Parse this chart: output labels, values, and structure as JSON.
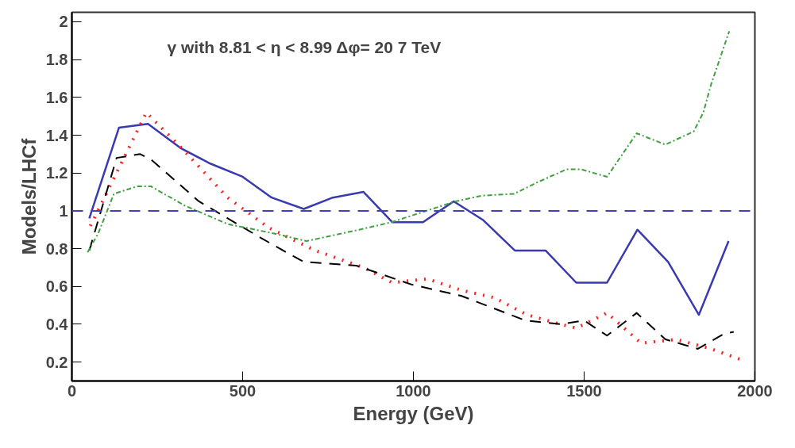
{
  "chart_data": {
    "type": "line",
    "xlabel": "Energy (GeV)",
    "ylabel": "Models/LHCf",
    "annotations": [
      "γ with 8.81 < η < 8.99 Δφ= 20     7 TeV"
    ],
    "xlim": [
      0,
      2000
    ],
    "xticks": [
      0,
      500,
      1000,
      1500,
      2000
    ],
    "ylim": [
      0.1,
      2.05
    ],
    "yticks": [
      0.2,
      0.4,
      0.6,
      0.8,
      1,
      1.2,
      1.4,
      1.6,
      1.8,
      2
    ],
    "grid": false,
    "marker": "none",
    "ref_lines": [
      {
        "axis": "y",
        "value": 1,
        "color": "#4040c0",
        "line_style": "dashed"
      }
    ],
    "series": [
      {
        "color": "#3a3ab0",
        "line_style": "solid",
        "x": [
          51,
          138,
          223,
          320,
          405,
          500,
          585,
          679,
          764,
          854,
          938,
          1028,
          1118,
          1205,
          1297,
          1387,
          1477,
          1567,
          1656,
          1746,
          1836,
          1923
        ],
        "values": [
          0.96,
          1.44,
          1.46,
          1.33,
          1.25,
          1.18,
          1.07,
          1.01,
          1.07,
          1.1,
          0.94,
          0.94,
          1.05,
          0.95,
          0.79,
          0.79,
          0.62,
          0.62,
          0.9,
          0.73,
          0.45,
          0.84
        ]
      },
      {
        "color": "#ff2020",
        "line_style": "dotted",
        "x": [
          54,
          218,
          333,
          456,
          577,
          713,
          854,
          938,
          1041,
          1141,
          1238,
          1333,
          1431,
          1477,
          1567,
          1667,
          1769,
          1872,
          1964
        ],
        "values": [
          0.92,
          1.52,
          1.31,
          1.07,
          0.91,
          0.79,
          0.7,
          0.62,
          0.64,
          0.58,
          0.54,
          0.45,
          0.4,
          0.38,
          0.46,
          0.3,
          0.32,
          0.27,
          0.21
        ]
      },
      {
        "color": "#000000",
        "line_style": "dashed",
        "x": [
          51,
          131,
          200,
          233,
          372,
          541,
          628,
          679,
          833,
          995,
          1141,
          1328,
          1431,
          1500,
          1567,
          1654,
          1738,
          1833,
          1910,
          1938
        ],
        "values": [
          0.79,
          1.28,
          1.3,
          1.27,
          1.05,
          0.87,
          0.78,
          0.73,
          0.71,
          0.61,
          0.55,
          0.42,
          0.4,
          0.42,
          0.34,
          0.46,
          0.32,
          0.27,
          0.35,
          0.36
        ]
      },
      {
        "color": "#40a040",
        "line_style": "dashdot",
        "x": [
          46,
          77,
          123,
          192,
          231,
          328,
          456,
          592,
          687,
          841,
          936,
          1123,
          1200,
          1295,
          1362,
          1449,
          1490,
          1567,
          1654,
          1738,
          1821,
          1849,
          1872,
          1925
        ],
        "values": [
          0.78,
          0.88,
          1.09,
          1.13,
          1.13,
          1.03,
          0.93,
          0.88,
          0.84,
          0.9,
          0.94,
          1.05,
          1.08,
          1.09,
          1.15,
          1.22,
          1.22,
          1.18,
          1.41,
          1.35,
          1.42,
          1.52,
          1.67,
          1.95
        ]
      }
    ]
  }
}
